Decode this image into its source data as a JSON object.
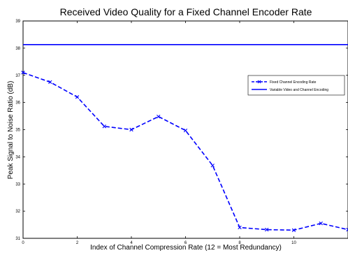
{
  "chart_data": {
    "type": "line",
    "title": "Received Video Quality for a Fixed Channel Encoder Rate",
    "xlabel": "Index of Channel Compression Rate (12 = Most Redundancy)",
    "ylabel": "Peak Signal to Noise Ratio (dB)",
    "xlim": [
      0,
      12
    ],
    "ylim": [
      31,
      39
    ],
    "x_ticks": [
      "0",
      "2",
      "4",
      "6",
      "8",
      "10"
    ],
    "y_ticks": [
      "31",
      "32",
      "33",
      "34",
      "35",
      "36",
      "37",
      "38",
      "39"
    ],
    "grid": false,
    "legend_position": "top-right",
    "series": [
      {
        "name": "Fixed Channel Encoding Rate",
        "style": "dashed-x",
        "color": "#0000ff",
        "x": [
          0,
          1,
          2,
          3,
          4,
          5,
          6,
          7,
          8,
          9,
          10,
          11,
          12
        ],
        "y": [
          37.1,
          36.75,
          36.2,
          35.12,
          35.0,
          35.48,
          34.97,
          33.68,
          31.4,
          31.32,
          31.3,
          31.55,
          31.32
        ]
      },
      {
        "name": "Variable Video and Channel Encoding",
        "style": "solid",
        "color": "#0000ff",
        "x": [
          0,
          12
        ],
        "y": [
          38.13,
          38.13
        ]
      }
    ]
  }
}
